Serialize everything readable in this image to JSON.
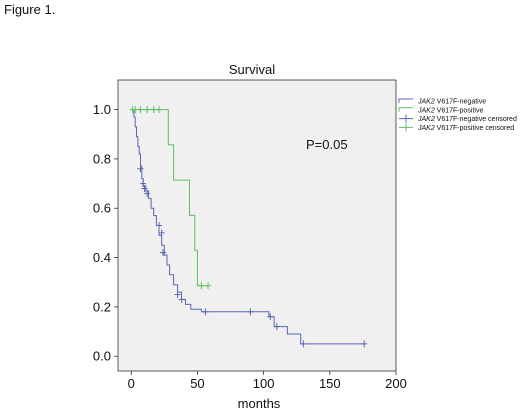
{
  "figure_label": "Figure 1.",
  "chart_data": {
    "type": "line",
    "title": "Survival",
    "xlabel": "months",
    "ylabel": "",
    "xlim": [
      -10,
      200
    ],
    "ylim": [
      -0.06,
      1.12
    ],
    "xticks": [
      0,
      50,
      100,
      150,
      200
    ],
    "xtick_labels": [
      "0",
      "50",
      "100",
      "150",
      "200"
    ],
    "yticks": [
      0.0,
      0.2,
      0.4,
      0.6,
      0.8,
      1.0
    ],
    "ytick_labels": [
      "0.0",
      "0.2",
      "0.4",
      "0.6",
      "0.8",
      "1.0"
    ],
    "grid": false,
    "plot_background": "#f0f0f0",
    "annotation": "P=0.05",
    "legend_position": "right-top",
    "series": [
      {
        "name_italic": "JAK2",
        "name_rest": " V617F-negative",
        "color": "#5b66b0",
        "steps": [
          [
            0,
            1.0
          ],
          [
            2,
            0.97
          ],
          [
            3,
            0.93
          ],
          [
            4,
            0.89
          ],
          [
            5,
            0.85
          ],
          [
            6,
            0.82
          ],
          [
            7,
            0.77
          ],
          [
            8,
            0.72
          ],
          [
            9,
            0.69
          ],
          [
            11,
            0.67
          ],
          [
            13,
            0.64
          ],
          [
            15,
            0.6
          ],
          [
            17,
            0.57
          ],
          [
            19,
            0.53
          ],
          [
            21,
            0.49
          ],
          [
            23,
            0.45
          ],
          [
            25,
            0.41
          ],
          [
            27,
            0.37
          ],
          [
            29,
            0.33
          ],
          [
            32,
            0.29
          ],
          [
            35,
            0.26
          ],
          [
            38,
            0.23
          ],
          [
            41,
            0.21
          ],
          [
            45,
            0.19
          ],
          [
            53,
            0.18
          ],
          [
            104,
            0.16
          ],
          [
            108,
            0.12
          ],
          [
            118,
            0.09
          ],
          [
            128,
            0.05
          ],
          [
            176,
            0.05
          ]
        ],
        "censored": [
          [
            7,
            0.76
          ],
          [
            9,
            0.7
          ],
          [
            10,
            0.68
          ],
          [
            12,
            0.66
          ],
          [
            21,
            0.53
          ],
          [
            23,
            0.5
          ],
          [
            24,
            0.42
          ],
          [
            35,
            0.25
          ],
          [
            38,
            0.23
          ],
          [
            56,
            0.18
          ],
          [
            90,
            0.18
          ],
          [
            105,
            0.16
          ],
          [
            110,
            0.12
          ],
          [
            130,
            0.05
          ],
          [
            176,
            0.05
          ]
        ]
      },
      {
        "name_italic": "JAK2",
        "name_rest": " V617F-positive",
        "color": "#5fbf5f",
        "steps": [
          [
            0,
            1.0
          ],
          [
            28,
            0.857
          ],
          [
            32,
            0.714
          ],
          [
            44,
            0.571
          ],
          [
            48,
            0.429
          ],
          [
            50,
            0.286
          ],
          [
            58,
            0.286
          ]
        ],
        "censored": [
          [
            1,
            1.0
          ],
          [
            3,
            1.0
          ],
          [
            7,
            1.0
          ],
          [
            12,
            1.0
          ],
          [
            17,
            1.0
          ],
          [
            21,
            1.0
          ],
          [
            53,
            0.286
          ],
          [
            58,
            0.286
          ]
        ]
      }
    ],
    "legend": [
      {
        "italic": "JAK2",
        "rest": " V617F-negative",
        "kind": "line",
        "color": "#5b66b0"
      },
      {
        "italic": "JAK2",
        "rest": " V617F-positive",
        "kind": "line",
        "color": "#5fbf5f"
      },
      {
        "italic": "JAK2",
        "rest": " V617F-negative censored",
        "kind": "cross",
        "color": "#5b66b0"
      },
      {
        "italic": "JAK2",
        "rest": " V617F-positive censored",
        "kind": "cross",
        "color": "#5fbf5f"
      }
    ]
  }
}
